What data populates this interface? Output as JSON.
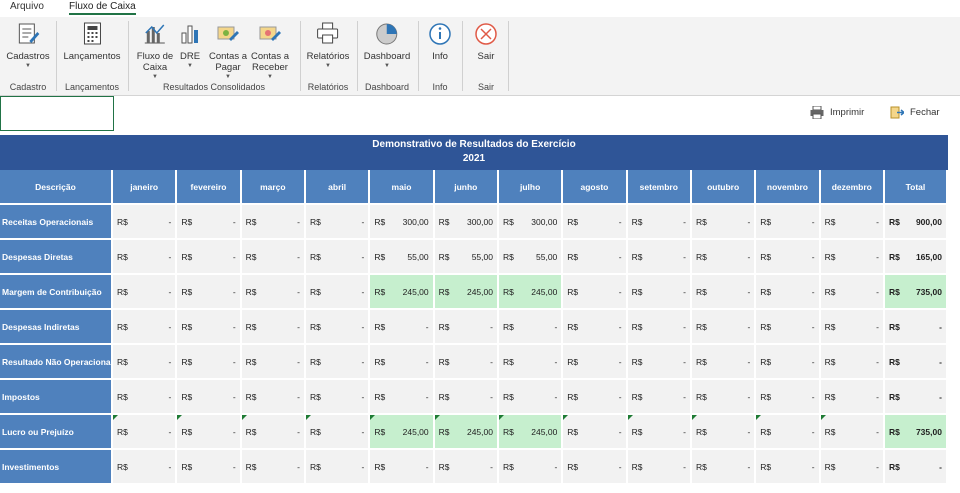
{
  "tabs": [
    "Arquivo",
    "Fluxo de Caixa"
  ],
  "ribbon": {
    "groups": [
      {
        "label": "Cadastro",
        "buttons": [
          {
            "lines": [
              "Cadastros"
            ]
          }
        ]
      },
      {
        "label": "Lançamentos",
        "buttons": [
          {
            "lines": [
              "Lançamentos"
            ]
          }
        ]
      },
      {
        "label": "Resultados Consolidados",
        "buttons": [
          {
            "lines": [
              "Fluxo de",
              "Caixa"
            ]
          },
          {
            "lines": [
              "DRE"
            ]
          },
          {
            "lines": [
              "Contas a",
              "Pagar"
            ]
          },
          {
            "lines": [
              "Contas a",
              "Receber"
            ]
          }
        ]
      },
      {
        "label": "Relatórios",
        "buttons": [
          {
            "lines": [
              "Relatórios"
            ]
          }
        ]
      },
      {
        "label": "Dashboard",
        "buttons": [
          {
            "lines": [
              "Dashboard"
            ]
          }
        ]
      },
      {
        "label": "Info",
        "buttons": [
          {
            "lines": [
              "Info"
            ]
          }
        ]
      },
      {
        "label": "Sair",
        "buttons": [
          {
            "lines": [
              "Sair"
            ]
          }
        ]
      }
    ]
  },
  "toolbar": [
    "Imprimir",
    "Fechar"
  ],
  "table": {
    "title": "Demonstrativo de Resultados do Exercício",
    "year": "2021",
    "currency": "R$",
    "highlight_color": "#c6efce",
    "columns": [
      "Descrição",
      "janeiro",
      "fevereiro",
      "março",
      "abril",
      "maio",
      "junho",
      "julho",
      "agosto",
      "setembro",
      "outubro",
      "novembro",
      "dezembro",
      "Total"
    ],
    "rows": [
      {
        "label": "Receitas Operacionais",
        "values": [
          "-",
          "-",
          "-",
          "-",
          "300,00",
          "300,00",
          "300,00",
          "-",
          "-",
          "-",
          "-",
          "-"
        ],
        "total": "900,00",
        "highlight": false
      },
      {
        "label": "Despesas Diretas",
        "values": [
          "-",
          "-",
          "-",
          "-",
          "55,00",
          "55,00",
          "55,00",
          "-",
          "-",
          "-",
          "-",
          "-"
        ],
        "total": "165,00",
        "highlight": false
      },
      {
        "label": "Margem de Contribuição",
        "values": [
          "-",
          "-",
          "-",
          "-",
          "245,00",
          "245,00",
          "245,00",
          "-",
          "-",
          "-",
          "-",
          "-"
        ],
        "total": "735,00",
        "highlight": true
      },
      {
        "label": "Despesas Indiretas",
        "values": [
          "-",
          "-",
          "-",
          "-",
          "-",
          "-",
          "-",
          "-",
          "-",
          "-",
          "-",
          "-"
        ],
        "total": "-",
        "highlight": false
      },
      {
        "label": "Resultado Não Operacional",
        "values": [
          "-",
          "-",
          "-",
          "-",
          "-",
          "-",
          "-",
          "-",
          "-",
          "-",
          "-",
          "-"
        ],
        "total": "-",
        "highlight": false
      },
      {
        "label": "Impostos",
        "values": [
          "-",
          "-",
          "-",
          "-",
          "-",
          "-",
          "-",
          "-",
          "-",
          "-",
          "-",
          "-"
        ],
        "total": "-",
        "highlight": false
      },
      {
        "label": "Lucro ou Prejuízo",
        "values": [
          "-",
          "-",
          "-",
          "-",
          "245,00",
          "245,00",
          "245,00",
          "-",
          "-",
          "-",
          "-",
          "-"
        ],
        "total": "735,00",
        "highlight": true
      },
      {
        "label": "Investimentos",
        "values": [
          "-",
          "-",
          "-",
          "-",
          "-",
          "-",
          "-",
          "-",
          "-",
          "-",
          "-",
          "-"
        ],
        "total": "-",
        "highlight": false
      }
    ]
  }
}
